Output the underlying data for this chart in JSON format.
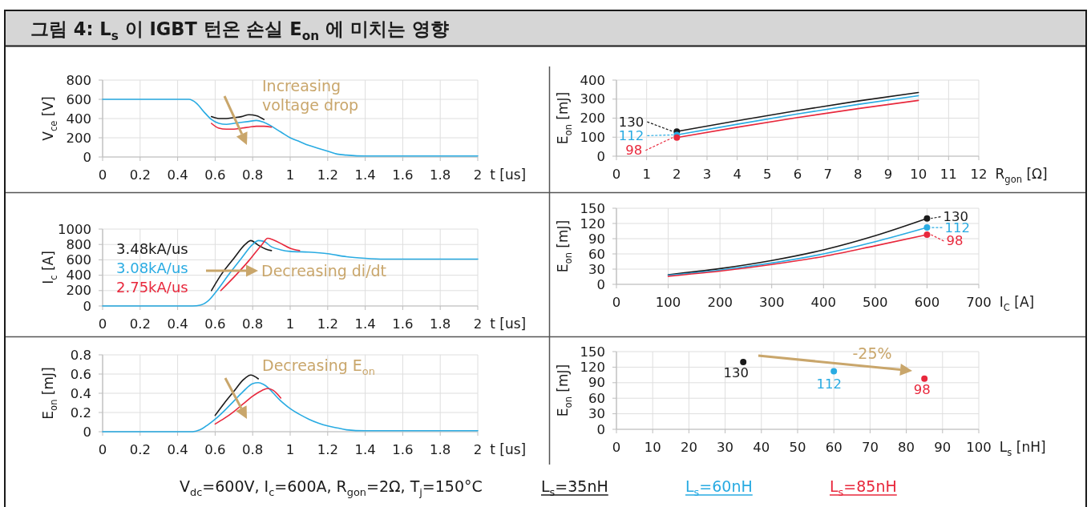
{
  "chart_data": [
    {
      "type": "line",
      "title": "그림 4: L$_{s}$ 이 IGBT 턴온 손실 E$_{on}$ 에 미치는 영향",
      "xlabel": "t [us]",
      "ylabel": "V$_{ce}$ [V]",
      "xlim": [
        0,
        2
      ],
      "xticks": [
        0,
        0.2,
        0.4,
        0.6,
        0.8,
        1,
        1.2,
        1.4,
        1.6,
        1.8,
        2
      ],
      "ylim": [
        0,
        800
      ],
      "yticks": [
        0,
        200,
        400,
        600,
        800
      ],
      "grid": true,
      "annotations": [
        "Increasing voltage drop"
      ],
      "series": [
        {
          "color": "#1a1a1a",
          "x": [
            0.58,
            0.62,
            0.66,
            0.7,
            0.74,
            0.78,
            0.82,
            0.86
          ],
          "values": [
            420,
            400,
            400,
            410,
            420,
            440,
            430,
            390
          ]
        },
        {
          "color": "#29abe2",
          "x": [
            0,
            0.2,
            0.3,
            0.46,
            0.5,
            0.54,
            0.58,
            0.62,
            0.66,
            0.7,
            0.74,
            0.78,
            0.82,
            0.86,
            0.95,
            1,
            1.05,
            1.1,
            1.15,
            1.2,
            1.25,
            1.3,
            1.4,
            1.6,
            1.8,
            2
          ],
          "values": [
            600,
            600,
            600,
            600,
            560,
            470,
            390,
            350,
            340,
            350,
            360,
            370,
            380,
            360,
            260,
            200,
            160,
            120,
            90,
            60,
            30,
            20,
            10,
            10,
            10,
            10
          ]
        },
        {
          "color": "#e8283c",
          "x": [
            0.58,
            0.62,
            0.66,
            0.7,
            0.74,
            0.78,
            0.82,
            0.86,
            0.9
          ],
          "values": [
            350,
            300,
            290,
            290,
            300,
            310,
            320,
            320,
            310
          ]
        }
      ]
    },
    {
      "type": "line",
      "xlabel": "R$_{gon}$ [Ω]",
      "ylabel": "E$_{on}$ [mJ]",
      "xlim": [
        0,
        12
      ],
      "xticks": [
        0,
        1,
        2,
        3,
        4,
        5,
        6,
        7,
        8,
        9,
        10,
        11,
        12
      ],
      "ylim": [
        0,
        400
      ],
      "yticks": [
        0,
        100,
        200,
        300,
        400
      ],
      "grid": true,
      "series": [
        {
          "color": "#1a1a1a",
          "x": [
            2,
            4,
            6,
            8,
            10
          ],
          "values": [
            130,
            186,
            240,
            290,
            335
          ]
        },
        {
          "color": "#29abe2",
          "x": [
            2,
            4,
            6,
            8,
            10
          ],
          "values": [
            112,
            168,
            222,
            272,
            318
          ]
        },
        {
          "color": "#e8283c",
          "x": [
            2,
            4,
            6,
            8,
            10
          ],
          "values": [
            98,
            152,
            203,
            250,
            293
          ]
        },
        {
          "type": "scatter",
          "marker": "circle",
          "color": "#1a1a1a",
          "x": [
            2
          ],
          "values": [
            130
          ],
          "value_labels": [
            "130"
          ]
        },
        {
          "type": "scatter",
          "marker": "circle",
          "color": "#29abe2",
          "x": [
            2
          ],
          "values": [
            112
          ],
          "value_labels": [
            "112"
          ]
        },
        {
          "type": "scatter",
          "marker": "circle",
          "color": "#e8283c",
          "x": [
            2
          ],
          "values": [
            98
          ],
          "value_labels": [
            "98"
          ]
        }
      ]
    },
    {
      "type": "line",
      "ylabel": "I$_{c}$ [A]",
      "xlabel": "t [us]",
      "xlim": [
        0,
        2
      ],
      "xticks": [
        0,
        0.2,
        0.4,
        0.6,
        0.8,
        1,
        1.2,
        1.4,
        1.6,
        1.8,
        2
      ],
      "ylim": [
        0,
        1000
      ],
      "yticks": [
        0,
        200,
        400,
        600,
        800,
        1000
      ],
      "grid": true,
      "legend": "left",
      "annotations": [
        "Decreasing di/dt"
      ],
      "series": [
        {
          "name": "3.48kA/us",
          "color": "#1a1a1a",
          "x": [
            0.58,
            0.63,
            0.7,
            0.76,
            0.79,
            0.83,
            0.87,
            0.9
          ],
          "values": [
            200,
            400,
            620,
            800,
            850,
            790,
            740,
            720
          ]
        },
        {
          "name": "3.08kA/us",
          "color": "#29abe2",
          "x": [
            0,
            0.2,
            0.4,
            0.48,
            0.52,
            0.56,
            0.61,
            0.67,
            0.74,
            0.8,
            0.83,
            0.86,
            0.9,
            0.95,
            1,
            1.1,
            1.2,
            1.3,
            1.4,
            1.5,
            1.6,
            1.8,
            2
          ],
          "values": [
            0,
            0,
            0,
            0,
            10,
            60,
            200,
            400,
            620,
            800,
            850,
            840,
            770,
            730,
            710,
            700,
            680,
            640,
            620,
            610,
            610,
            610,
            610
          ]
        },
        {
          "name": "2.75kA/us",
          "color": "#e8283c",
          "x": [
            0.63,
            0.71,
            0.78,
            0.85,
            0.88,
            0.91,
            0.96,
            1,
            1.05
          ],
          "values": [
            200,
            400,
            590,
            800,
            880,
            860,
            800,
            750,
            720
          ]
        }
      ]
    },
    {
      "type": "line",
      "xlabel": "I$_{C}$ [A]",
      "ylabel": "E$_{on}$ [mJ]",
      "xlim": [
        0,
        700
      ],
      "xticks": [
        0,
        100,
        200,
        300,
        400,
        500,
        600,
        700
      ],
      "ylim": [
        0,
        150
      ],
      "yticks": [
        0,
        30,
        60,
        90,
        120,
        150
      ],
      "grid": true,
      "series": [
        {
          "color": "#1a1a1a",
          "x": [
            100,
            200,
            300,
            400,
            500,
            600
          ],
          "values": [
            19,
            31,
            47,
            68,
            96,
            130
          ]
        },
        {
          "color": "#29abe2",
          "x": [
            100,
            200,
            300,
            400,
            500,
            600
          ],
          "values": [
            18,
            28,
            42,
            60,
            84,
            112
          ]
        },
        {
          "color": "#e8283c",
          "x": [
            100,
            200,
            300,
            400,
            500,
            600
          ],
          "values": [
            16,
            26,
            39,
            55,
            76,
            98
          ]
        },
        {
          "type": "scatter",
          "marker": "circle",
          "color": "#1a1a1a",
          "x": [
            600
          ],
          "values": [
            130
          ],
          "value_labels": [
            "130"
          ]
        },
        {
          "type": "scatter",
          "marker": "circle",
          "color": "#29abe2",
          "x": [
            600
          ],
          "values": [
            112
          ],
          "value_labels": [
            "112"
          ]
        },
        {
          "type": "scatter",
          "marker": "circle",
          "color": "#e8283c",
          "x": [
            600
          ],
          "values": [
            98
          ],
          "value_labels": [
            "98"
          ]
        }
      ]
    },
    {
      "type": "line",
      "xlabel": "t [us]",
      "ylabel": "E$_{on}$ [mJ]",
      "xlim": [
        0,
        2
      ],
      "xticks": [
        0,
        0.2,
        0.4,
        0.6,
        0.8,
        1,
        1.2,
        1.4,
        1.6,
        1.8,
        2
      ],
      "ylim": [
        0,
        0.8
      ],
      "yticks": [
        0,
        0.2,
        0.4,
        0.6,
        0.8
      ],
      "grid": true,
      "annotations": [
        "Decreasing E$_{on}$",
        "V$_{dc}$=600V, I$_{c}$=600A, R$_{gon}$=2Ω, T$_{j}$=150°C"
      ],
      "series": [
        {
          "color": "#1a1a1a",
          "x": [
            0.6,
            0.65,
            0.7,
            0.75,
            0.79,
            0.83
          ],
          "values": [
            0.17,
            0.3,
            0.42,
            0.54,
            0.59,
            0.55
          ]
        },
        {
          "color": "#29abe2",
          "x": [
            0,
            0.2,
            0.4,
            0.48,
            0.52,
            0.56,
            0.6,
            0.65,
            0.7,
            0.75,
            0.8,
            0.83,
            0.86,
            0.95,
            1,
            1.05,
            1.1,
            1.15,
            1.2,
            1.25,
            1.3,
            1.4,
            1.6,
            1.8,
            2
          ],
          "values": [
            0,
            0,
            0,
            0,
            0.02,
            0.07,
            0.13,
            0.22,
            0.32,
            0.42,
            0.5,
            0.51,
            0.49,
            0.32,
            0.24,
            0.18,
            0.13,
            0.09,
            0.06,
            0.04,
            0.02,
            0.01,
            0.01,
            0.01,
            0.01
          ]
        },
        {
          "color": "#e8283c",
          "x": [
            0.6,
            0.65,
            0.7,
            0.75,
            0.8,
            0.85,
            0.88,
            0.91,
            0.95
          ],
          "values": [
            0.08,
            0.14,
            0.21,
            0.29,
            0.37,
            0.43,
            0.45,
            0.43,
            0.35
          ]
        }
      ]
    },
    {
      "type": "scatter",
      "xlabel": "L$_{s}$ [nH]",
      "ylabel": "E$_{on}$ [mJ]",
      "xlim": [
        0,
        100
      ],
      "xticks": [
        0,
        10,
        20,
        30,
        40,
        50,
        60,
        70,
        80,
        90,
        100
      ],
      "ylim": [
        0,
        150
      ],
      "yticks": [
        0,
        30,
        60,
        90,
        120,
        150
      ],
      "grid": true,
      "legend": "bottom",
      "annotations": [
        "-25%"
      ],
      "series": [
        {
          "name": "L$_{s}$=35nH",
          "color": "#1a1a1a",
          "x": [
            35
          ],
          "values": [
            130
          ],
          "value_labels": [
            "130"
          ]
        },
        {
          "name": "L$_{s}$=60nH",
          "color": "#29abe2",
          "x": [
            60
          ],
          "values": [
            112
          ],
          "value_labels": [
            "112"
          ]
        },
        {
          "name": "L$_{s}$=85nH",
          "color": "#e8283c",
          "x": [
            85
          ],
          "values": [
            98
          ],
          "value_labels": [
            "98"
          ]
        }
      ]
    }
  ]
}
